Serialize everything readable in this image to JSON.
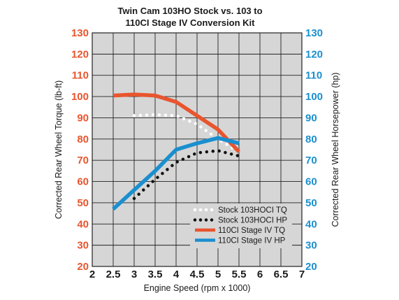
{
  "chart_data": {
    "type": "line",
    "title": [
      "Twin Cam 103HO Stock vs. 103 to",
      "110CI Stage IV Conversion Kit"
    ],
    "xlabel": "Engine Speed (rpm x 1000)",
    "ylabel_left": "Corrected Rear Wheel Torque (lb-ft)",
    "ylabel_right": "Corrected Rear Wheel Horsepower (hp)",
    "xlim": [
      2,
      7
    ],
    "ylim": [
      20,
      130
    ],
    "x_ticks": [
      "2",
      "2.5",
      "3",
      "3.5",
      "4",
      "4.5",
      "5",
      "5.5",
      "6",
      "6.5",
      "7"
    ],
    "y_ticks": [
      "20",
      "30",
      "40",
      "50",
      "60",
      "70",
      "80",
      "90",
      "100",
      "110",
      "120",
      "130"
    ],
    "left_axis_color": "#e8552e",
    "right_axis_color": "#1a8fcf",
    "grid": true,
    "legend_position": "bottom-right",
    "series": [
      {
        "name": "Stock 103HOCI TQ",
        "color": "#ffffff",
        "style": "dotted",
        "x": [
          3.0,
          3.5,
          4.0,
          4.5,
          5.0,
          5.5
        ],
        "y": [
          91,
          91.5,
          91,
          87,
          80,
          74
        ]
      },
      {
        "name": "Stock 103HOCI HP",
        "color": "#111111",
        "style": "dotted",
        "x": [
          3.0,
          3.5,
          4.0,
          4.5,
          5.0,
          5.5
        ],
        "y": [
          52,
          61,
          69,
          73.5,
          74.5,
          72
        ]
      },
      {
        "name": "110CI Stage IV TQ",
        "color": "#e8552e",
        "style": "solid",
        "x": [
          2.5,
          3.0,
          3.5,
          4.0,
          4.5,
          5.0,
          5.5
        ],
        "y": [
          100.5,
          101,
          100.5,
          97.5,
          91,
          84.5,
          74
        ]
      },
      {
        "name": "110CI Stage IV HP",
        "color": "#1a8fcf",
        "style": "solid",
        "x": [
          2.5,
          3.0,
          3.5,
          4.0,
          4.5,
          5.0,
          5.5
        ],
        "y": [
          47,
          56,
          65,
          75,
          78,
          80.5,
          78
        ]
      }
    ]
  }
}
